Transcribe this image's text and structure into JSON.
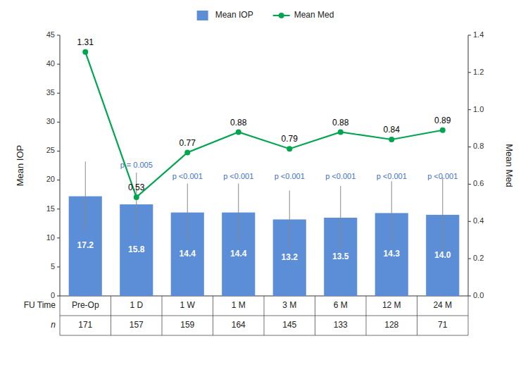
{
  "chart_data": {
    "type": "bar",
    "categories": [
      "Pre-Op",
      "1 D",
      "1 W",
      "1 M",
      "3 M",
      "6 M",
      "12 M",
      "24 M"
    ],
    "series": [
      {
        "name": "Mean IOP",
        "type": "bar",
        "color": "#5b8ed6",
        "values": [
          17.2,
          15.8,
          14.4,
          14.4,
          13.2,
          13.5,
          14.3,
          14.0
        ],
        "errors": [
          6.0,
          5.5,
          5.0,
          5.0,
          5.0,
          5.5,
          5.5,
          6.5
        ],
        "data_labels": true,
        "value_labels": [
          "17.2",
          "15.8",
          "14.4",
          "14.4",
          "13.2",
          "13.5",
          "14.3",
          "14.0"
        ]
      },
      {
        "name": "Mean Med",
        "type": "line",
        "axis": "y2",
        "color": "#00a550",
        "marker": "circle",
        "values": [
          1.31,
          0.53,
          0.77,
          0.88,
          0.79,
          0.88,
          0.84,
          0.89
        ],
        "data_labels": true
      }
    ],
    "ylabel": "Mean IOP",
    "y2label": "Mean Med",
    "ylim": [
      0,
      45
    ],
    "yticks": [
      0,
      5,
      10,
      15,
      20,
      25,
      30,
      35,
      40,
      45
    ],
    "y2lim": [
      0.0,
      1.4
    ],
    "y2ticks": [
      {
        "value": 0.0,
        "label": "0.0"
      },
      0.2,
      0.4,
      0.6,
      0.8,
      {
        "value": 1.0,
        "label": "1.0"
      },
      1.2,
      1.4
    ],
    "annotations": [
      {
        "text": "p = 0.005",
        "x": "1 D",
        "y": 22.5,
        "color": "#4472c4"
      },
      {
        "text": "p <0.001",
        "x": "1 W",
        "y": 20.5,
        "color": "#4472c4"
      },
      {
        "text": "p <0.001",
        "x": "1 M",
        "y": 20.5,
        "color": "#4472c4"
      },
      {
        "text": "p <0.001",
        "x": "3 M",
        "y": 20.5,
        "color": "#4472c4"
      },
      {
        "text": "p <0.001",
        "x": "6 M",
        "y": 20.5,
        "color": "#4472c4"
      },
      {
        "text": "p <0.001",
        "x": "12 M",
        "y": 20.5,
        "color": "#4472c4"
      },
      {
        "text": "p <0.001",
        "x": "24 M",
        "y": 20.5,
        "color": "#4472c4"
      }
    ],
    "x_row_label": "FU Time",
    "n_label": "n",
    "n_values": [
      171,
      157,
      159,
      164,
      145,
      133,
      128,
      71
    ],
    "legend": "top",
    "grid": false
  }
}
